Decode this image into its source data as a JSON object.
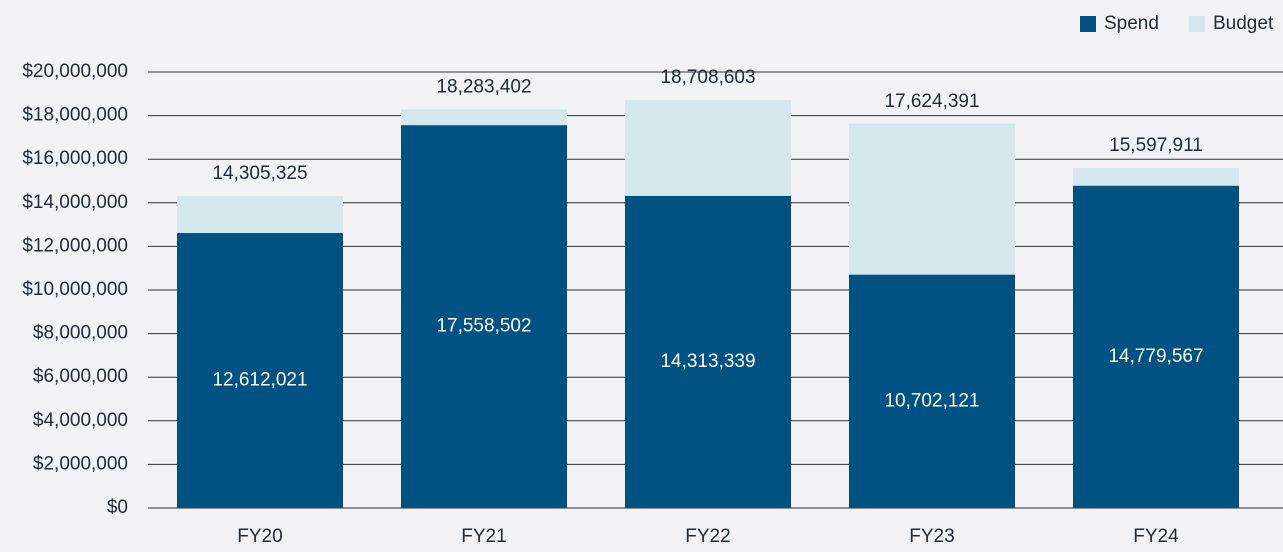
{
  "chart_data": {
    "type": "bar",
    "categories": [
      "FY20",
      "FY21",
      "FY22",
      "FY23",
      "FY24"
    ],
    "series": [
      {
        "name": "Spend",
        "color": "#005282",
        "values": [
          12612021,
          17558502,
          14313339,
          10702121,
          14779567
        ],
        "value_labels": [
          "12,612,021",
          "17,558,502",
          "14,313,339",
          "10,702,121",
          "14,779,567"
        ]
      },
      {
        "name": "Budget",
        "color": "#d3e7ec",
        "values": [
          14305325,
          18283402,
          18708603,
          17624391,
          15597911
        ],
        "value_labels": [
          "14,305,325",
          "18,283,402",
          "18,708,603",
          "17,624,391",
          "15,597,911"
        ]
      }
    ],
    "ylim": [
      0,
      20000000
    ],
    "yticks": [
      {
        "value": 0,
        "label": "$0"
      },
      {
        "value": 2000000,
        "label": "$2,000,000"
      },
      {
        "value": 4000000,
        "label": "$4,000,000"
      },
      {
        "value": 6000000,
        "label": "$6,000,000"
      },
      {
        "value": 8000000,
        "label": "$8,000,000"
      },
      {
        "value": 10000000,
        "label": "$10,000,000"
      },
      {
        "value": 12000000,
        "label": "$12,000,000"
      },
      {
        "value": 14000000,
        "label": "$14,000,000"
      },
      {
        "value": 16000000,
        "label": "$16,000,000"
      },
      {
        "value": 18000000,
        "label": "$18,000,000"
      },
      {
        "value": 20000000,
        "label": "$20,000,000"
      }
    ],
    "grid": true,
    "legend": "top-right"
  }
}
